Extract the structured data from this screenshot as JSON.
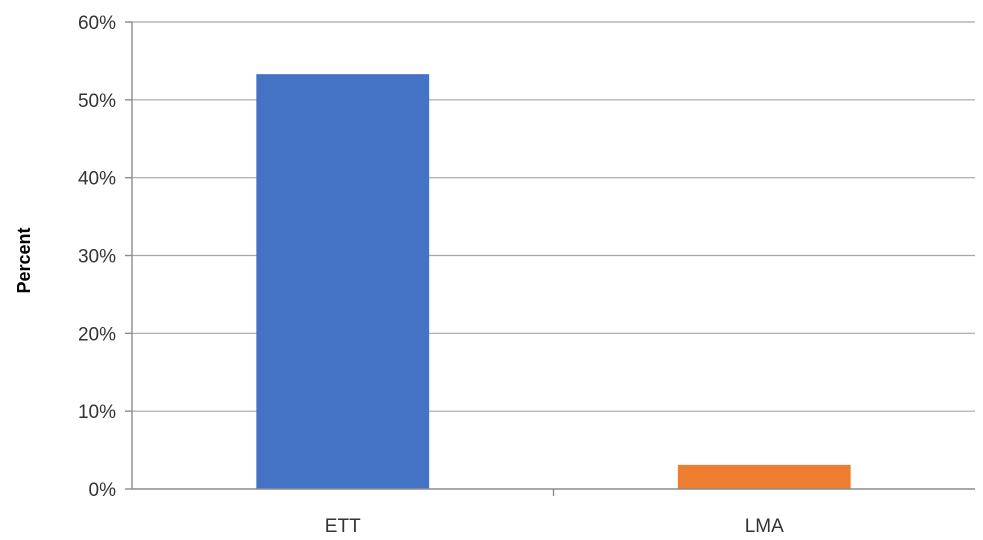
{
  "chart_data": {
    "type": "bar",
    "categories": [
      "ETT",
      "LMA"
    ],
    "values": [
      53.3,
      3.1
    ],
    "value_unit": "percent",
    "ylabel": "Percent",
    "xlabel": "",
    "ylim": [
      0,
      60
    ],
    "ytick_step": 10,
    "ytick_labels": [
      "0%",
      "10%",
      "20%",
      "30%",
      "40%",
      "50%",
      "60%"
    ],
    "bar_colors": [
      "#4472c4",
      "#ed7d31"
    ],
    "grid": true,
    "legend": "none"
  }
}
